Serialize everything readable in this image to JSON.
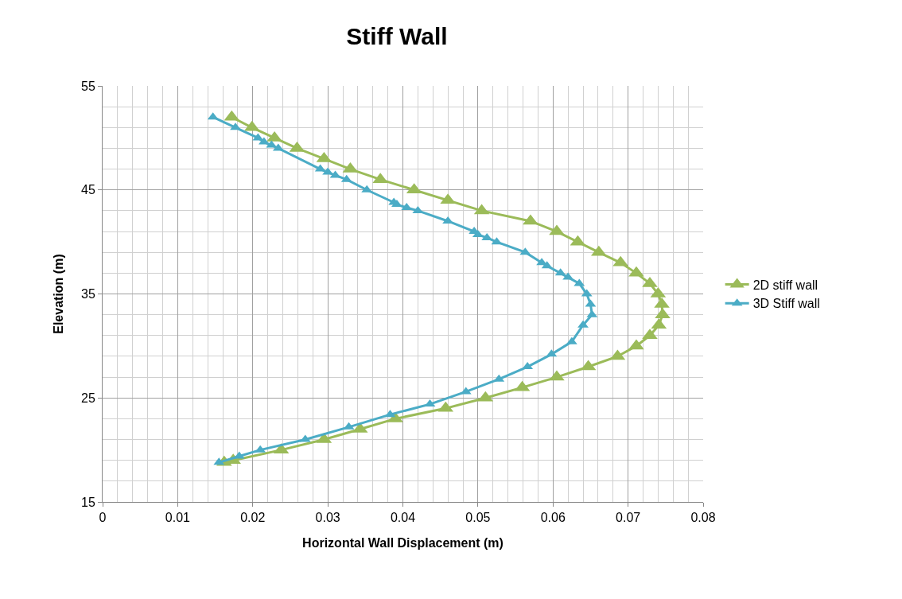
{
  "chart_data": {
    "type": "line",
    "title": "Stiff Wall",
    "xlabel": "Horizontal Wall Displacement (m)",
    "ylabel": "Elevation (m)",
    "xlim": [
      0,
      0.08
    ],
    "xticks": [
      0,
      0.01,
      0.02,
      0.03,
      0.04,
      0.05,
      0.06,
      0.07,
      0.08
    ],
    "ylim": [
      15,
      55
    ],
    "yticks": [
      15,
      25,
      35,
      45,
      55
    ],
    "grid": true,
    "legend": "right",
    "marker": "triangle",
    "line_style": "solid",
    "series": [
      {
        "name": "2D stiff wall",
        "color": "#9bbb59",
        "x": [
          0.0172,
          0.0199,
          0.0229,
          0.0259,
          0.0295,
          0.033,
          0.037,
          0.0415,
          0.046,
          0.0505,
          0.057,
          0.0605,
          0.0633,
          0.0661,
          0.069,
          0.0711,
          0.0729,
          0.074,
          0.0745,
          0.0746,
          0.0741,
          0.0729,
          0.0711,
          0.0686,
          0.0647,
          0.0605,
          0.0559,
          0.051,
          0.0457,
          0.039,
          0.0343,
          0.0295,
          0.0238,
          0.0174,
          0.0162
        ],
        "values": [
          52,
          51,
          50,
          49,
          48,
          47,
          46,
          45,
          44,
          43,
          42,
          41,
          40,
          39,
          38,
          37,
          36,
          35,
          34,
          33,
          32,
          31,
          30,
          29,
          28,
          27,
          26,
          25,
          24,
          23,
          22,
          21,
          20,
          19,
          18.8
        ]
      },
      {
        "name": "3D Stiff wall",
        "color": "#4bacc6",
        "x": [
          0.0147,
          0.0177,
          0.0207,
          0.0215,
          0.0225,
          0.0234,
          0.029,
          0.03,
          0.031,
          0.0325,
          0.0352,
          0.0388,
          0.0392,
          0.0405,
          0.042,
          0.046,
          0.0495,
          0.05,
          0.0512,
          0.0525,
          0.0563,
          0.0585,
          0.0592,
          0.061,
          0.062,
          0.0635,
          0.0645,
          0.065,
          0.0652,
          0.064,
          0.0625,
          0.0598,
          0.0566,
          0.0528,
          0.0484,
          0.0436,
          0.0383,
          0.0328,
          0.027,
          0.021,
          0.0182,
          0.0155
        ],
        "values": [
          52,
          51,
          50,
          49.6,
          49.3,
          49,
          47,
          46.7,
          46.4,
          46,
          45,
          43.8,
          43.6,
          43.3,
          43,
          42,
          41,
          40.7,
          40.4,
          40,
          39,
          38,
          37.7,
          37,
          36.6,
          36,
          35,
          34,
          33,
          32,
          30.4,
          29.2,
          28,
          26.8,
          25.6,
          24.4,
          23.4,
          22.2,
          21,
          20,
          19.4,
          18.8
        ]
      }
    ]
  }
}
